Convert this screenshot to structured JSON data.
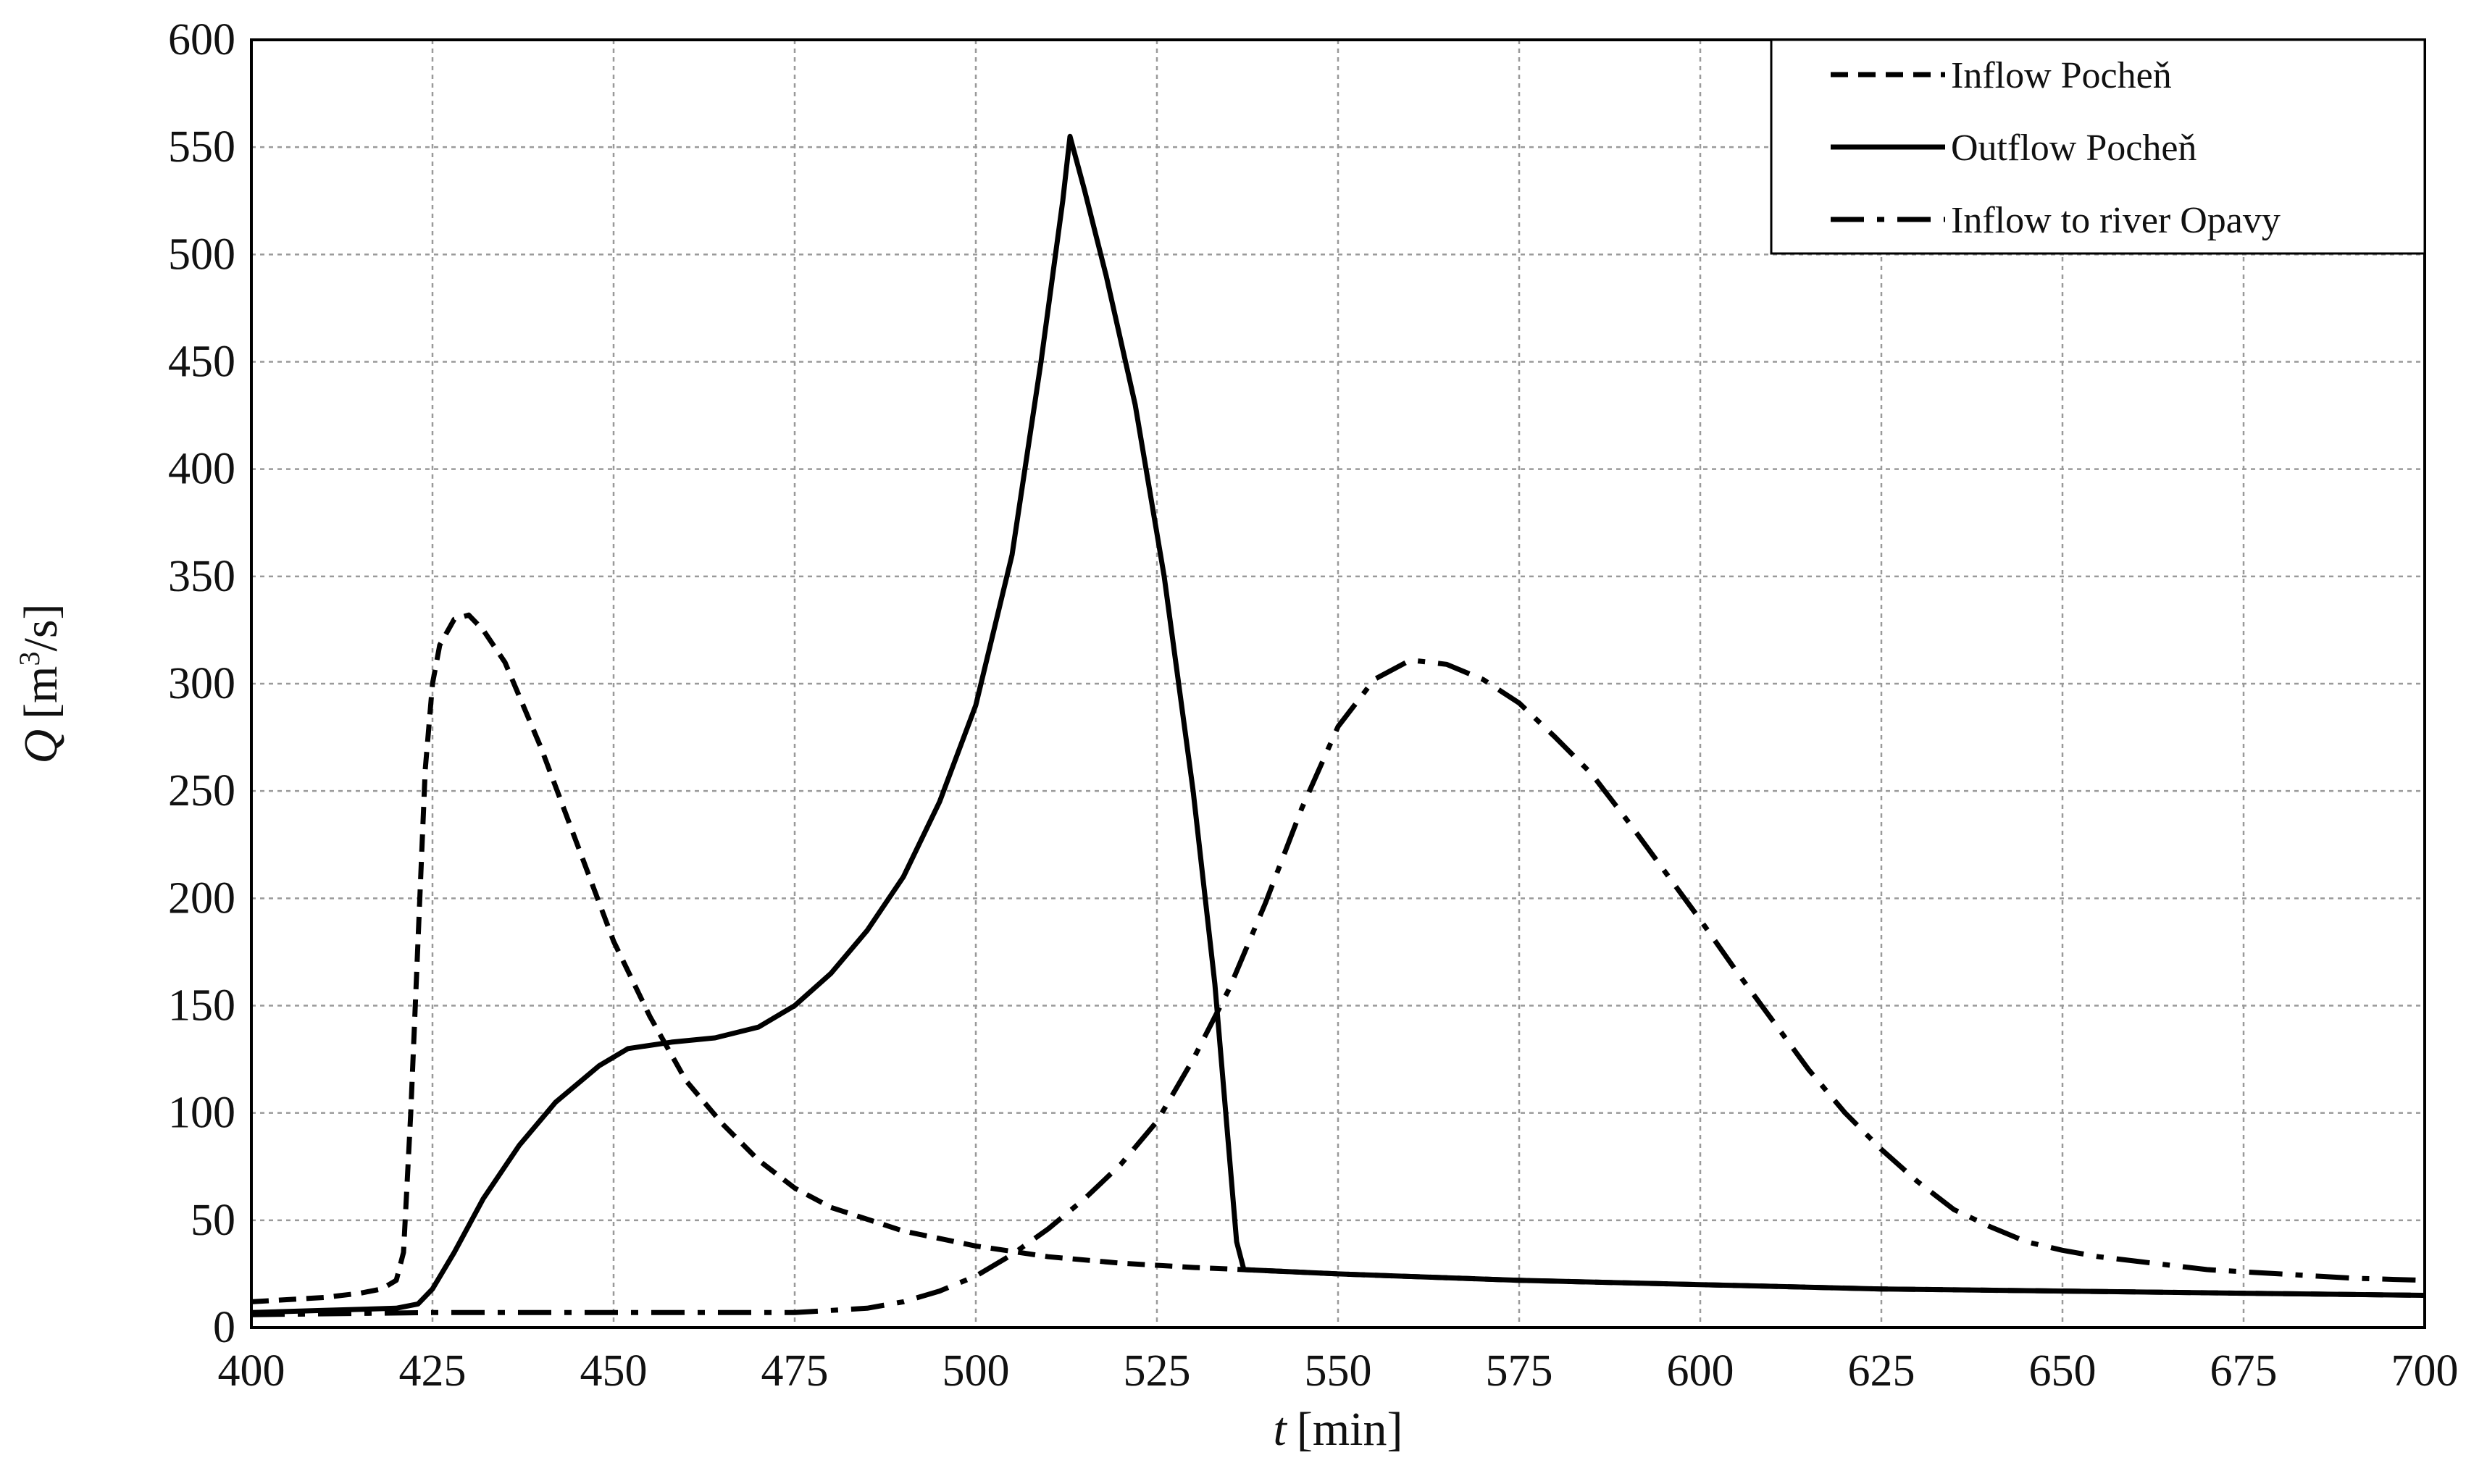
{
  "chart_data": {
    "type": "line",
    "xlabel_var": "t",
    "xlabel_unit": "[min]",
    "ylabel_var": "Q",
    "ylabel_unit_pre": "[m",
    "ylabel_unit_sup": "3",
    "ylabel_unit_post": "/s]",
    "xlim": [
      400,
      700
    ],
    "ylim": [
      0,
      600
    ],
    "x_ticks": [
      "400",
      "425",
      "450",
      "475",
      "500",
      "525",
      "550",
      "575",
      "600",
      "625",
      "650",
      "675",
      "700"
    ],
    "y_ticks": [
      "0",
      "50",
      "100",
      "150",
      "200",
      "250",
      "300",
      "350",
      "400",
      "450",
      "500",
      "550",
      "600"
    ],
    "grid": true,
    "legend_position": "top-right",
    "series": [
      {
        "name": "Inflow Pocheň",
        "style": "dashed",
        "color": "#000000",
        "points": [
          [
            400,
            12
          ],
          [
            410,
            14
          ],
          [
            415,
            16
          ],
          [
            418,
            18
          ],
          [
            420,
            22
          ],
          [
            421,
            35
          ],
          [
            422,
            100
          ],
          [
            423,
            180
          ],
          [
            424,
            260
          ],
          [
            425,
            300
          ],
          [
            426,
            318
          ],
          [
            428,
            330
          ],
          [
            430,
            332
          ],
          [
            432,
            325
          ],
          [
            435,
            310
          ],
          [
            440,
            270
          ],
          [
            445,
            225
          ],
          [
            450,
            180
          ],
          [
            455,
            145
          ],
          [
            460,
            115
          ],
          [
            465,
            95
          ],
          [
            470,
            78
          ],
          [
            475,
            65
          ],
          [
            480,
            56
          ],
          [
            490,
            45
          ],
          [
            500,
            38
          ],
          [
            510,
            33
          ],
          [
            520,
            30
          ],
          [
            530,
            28
          ],
          [
            537,
            27
          ],
          [
            550,
            25
          ],
          [
            575,
            22
          ],
          [
            600,
            20
          ],
          [
            625,
            18
          ],
          [
            650,
            17
          ],
          [
            675,
            16
          ],
          [
            700,
            15
          ]
        ]
      },
      {
        "name": "Outflow Pocheň",
        "style": "solid",
        "color": "#000000",
        "points": [
          [
            400,
            7
          ],
          [
            410,
            8
          ],
          [
            420,
            9
          ],
          [
            423,
            11
          ],
          [
            425,
            18
          ],
          [
            428,
            35
          ],
          [
            432,
            60
          ],
          [
            437,
            85
          ],
          [
            442,
            105
          ],
          [
            448,
            122
          ],
          [
            452,
            130
          ],
          [
            458,
            133
          ],
          [
            464,
            135
          ],
          [
            470,
            140
          ],
          [
            475,
            150
          ],
          [
            480,
            165
          ],
          [
            485,
            185
          ],
          [
            490,
            210
          ],
          [
            495,
            245
          ],
          [
            500,
            290
          ],
          [
            505,
            360
          ],
          [
            509,
            450
          ],
          [
            512,
            525
          ],
          [
            513,
            555
          ],
          [
            515,
            530
          ],
          [
            518,
            490
          ],
          [
            522,
            430
          ],
          [
            526,
            350
          ],
          [
            530,
            250
          ],
          [
            533,
            160
          ],
          [
            535,
            80
          ],
          [
            536,
            40
          ],
          [
            537,
            27
          ],
          [
            550,
            25
          ],
          [
            575,
            22
          ],
          [
            600,
            20
          ],
          [
            625,
            18
          ],
          [
            650,
            17
          ],
          [
            675,
            16
          ],
          [
            700,
            15
          ]
        ]
      },
      {
        "name": "Inflow to river Opavy",
        "style": "dashdot",
        "color": "#000000",
        "points": [
          [
            400,
            6
          ],
          [
            425,
            7
          ],
          [
            450,
            7
          ],
          [
            475,
            7
          ],
          [
            485,
            9
          ],
          [
            490,
            12
          ],
          [
            495,
            17
          ],
          [
            500,
            24
          ],
          [
            505,
            34
          ],
          [
            510,
            46
          ],
          [
            515,
            60
          ],
          [
            520,
            76
          ],
          [
            525,
            96
          ],
          [
            530,
            125
          ],
          [
            535,
            158
          ],
          [
            540,
            198
          ],
          [
            545,
            242
          ],
          [
            550,
            280
          ],
          [
            555,
            302
          ],
          [
            560,
            311
          ],
          [
            565,
            309
          ],
          [
            570,
            302
          ],
          [
            575,
            291
          ],
          [
            580,
            275
          ],
          [
            585,
            258
          ],
          [
            590,
            236
          ],
          [
            595,
            213
          ],
          [
            600,
            190
          ],
          [
            605,
            166
          ],
          [
            610,
            143
          ],
          [
            615,
            120
          ],
          [
            620,
            100
          ],
          [
            625,
            83
          ],
          [
            630,
            68
          ],
          [
            635,
            55
          ],
          [
            640,
            47
          ],
          [
            645,
            40
          ],
          [
            650,
            36
          ],
          [
            655,
            33
          ],
          [
            660,
            31
          ],
          [
            665,
            29
          ],
          [
            670,
            27
          ],
          [
            675,
            26
          ],
          [
            680,
            25
          ],
          [
            690,
            23
          ],
          [
            700,
            22
          ]
        ]
      }
    ]
  }
}
